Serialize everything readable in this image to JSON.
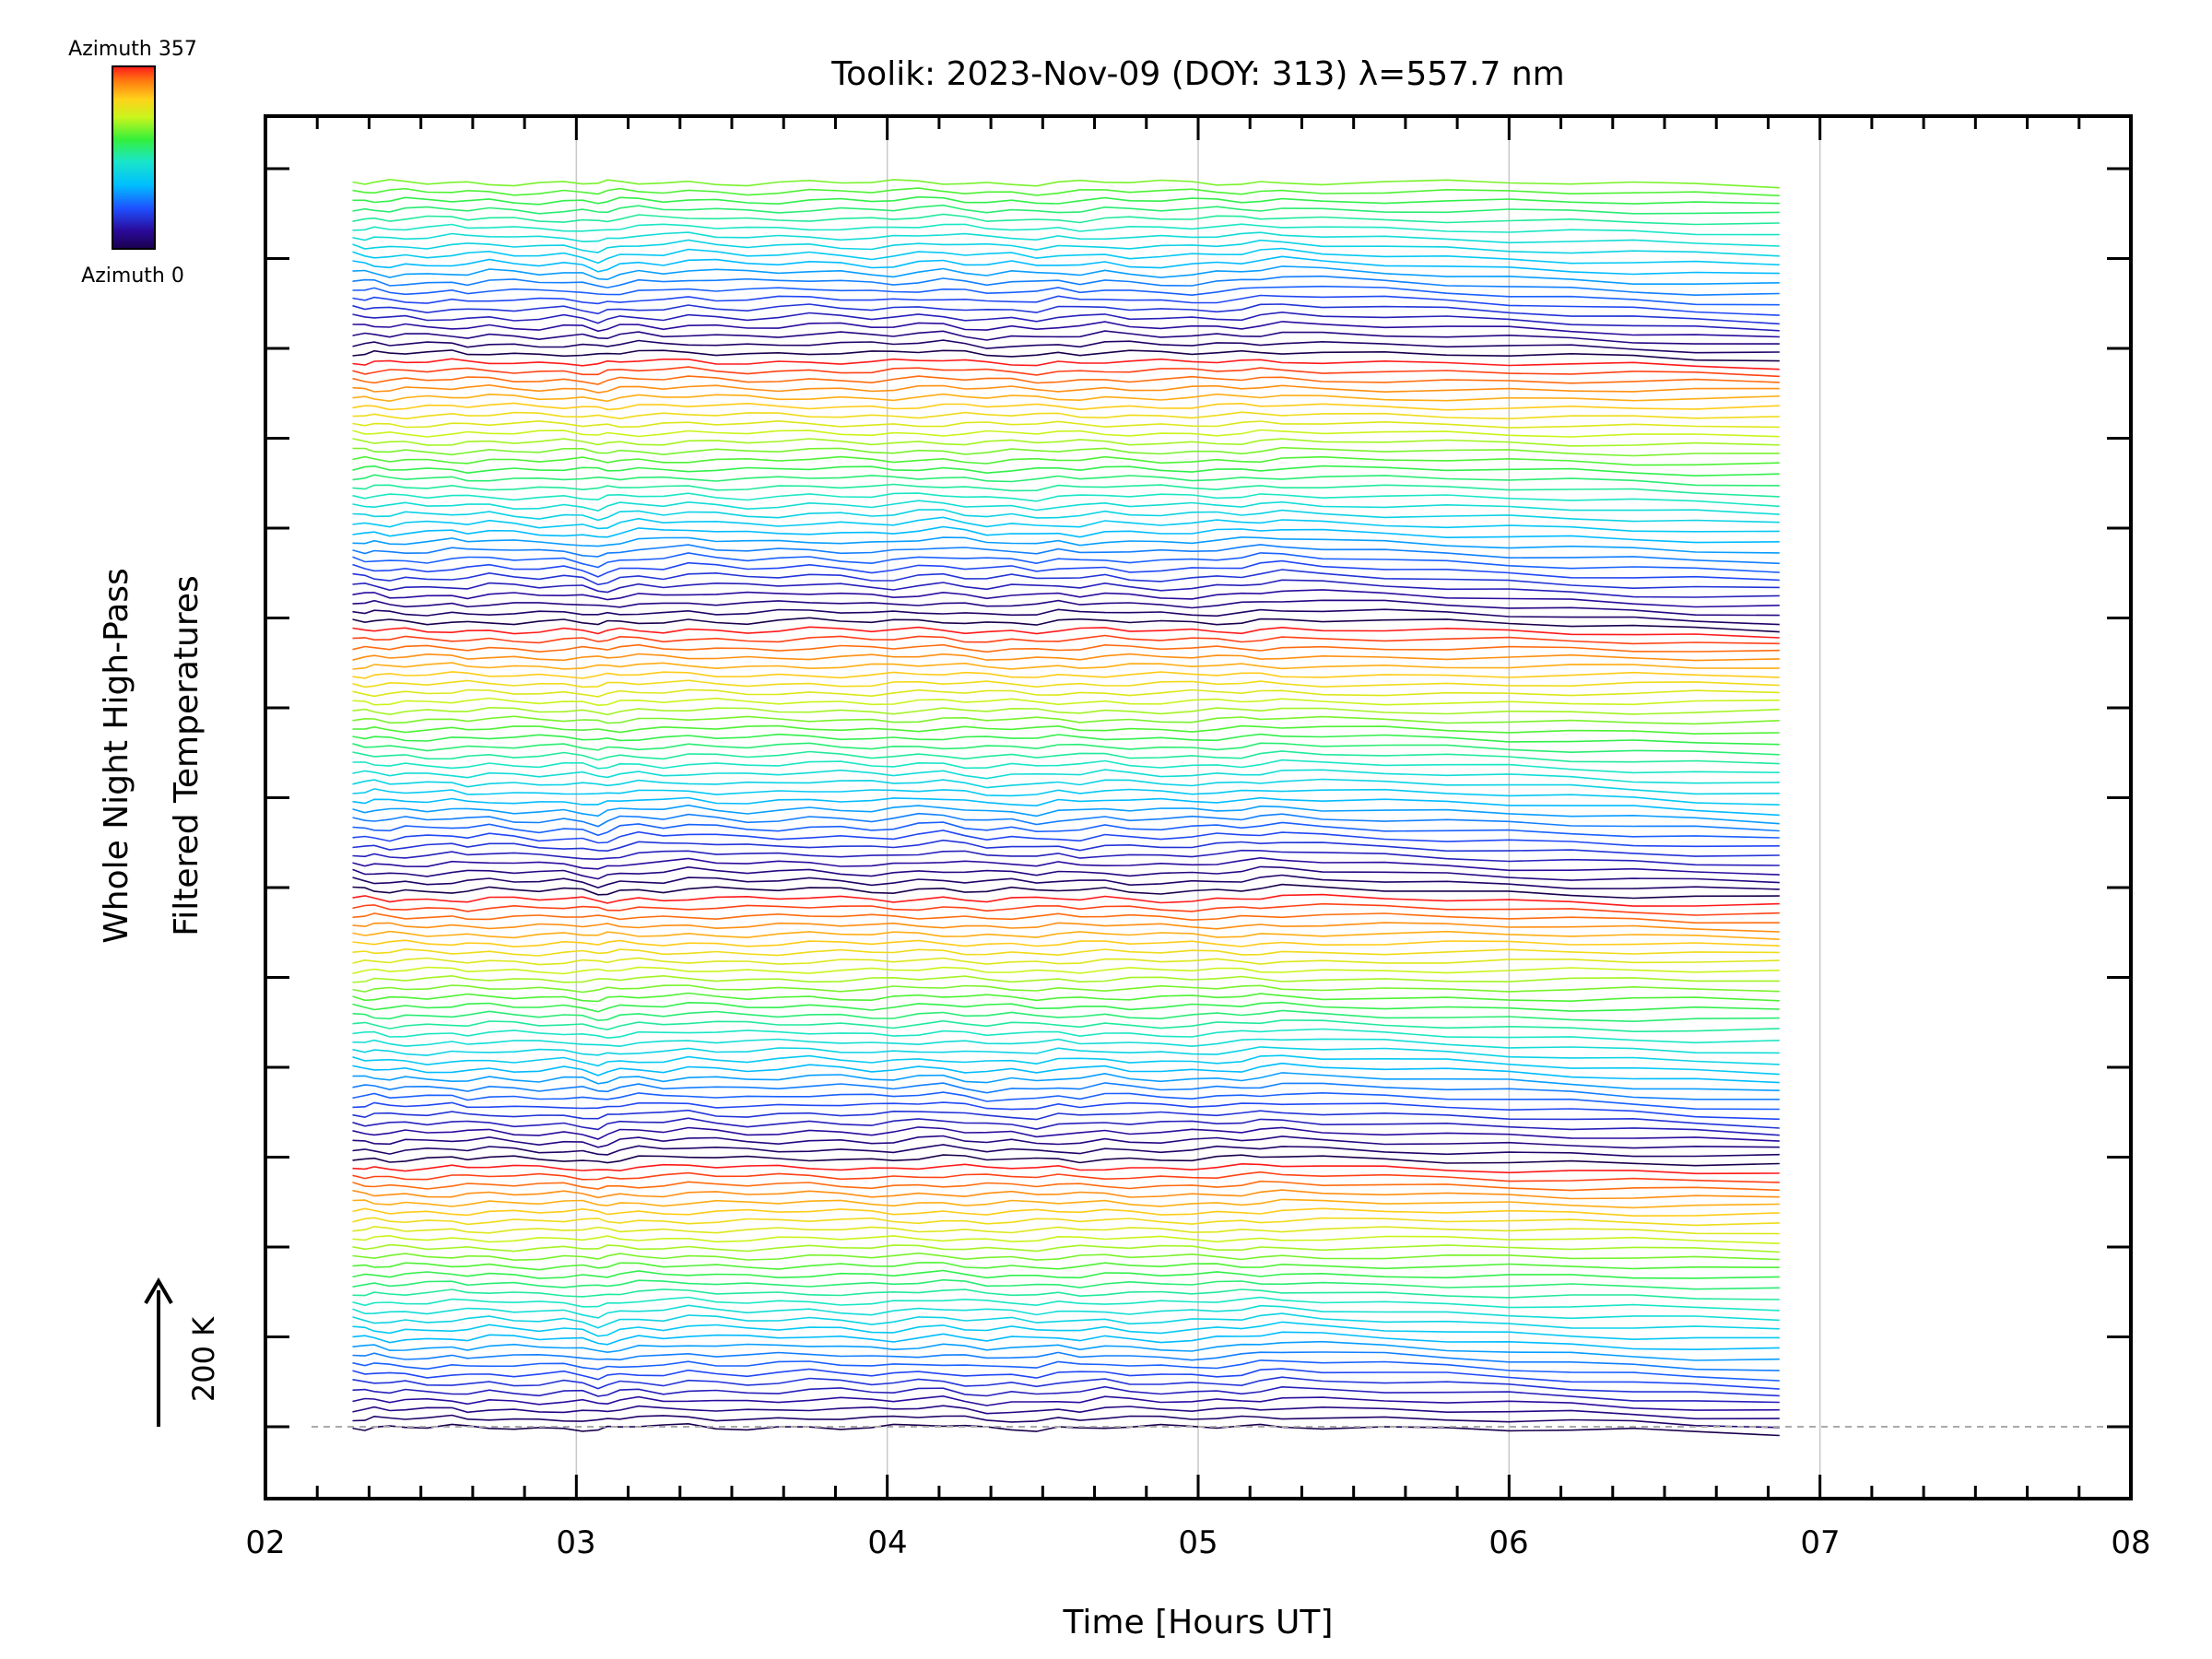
{
  "chart_data": {
    "type": "line",
    "title": "Toolik: 2023-Nov-09 (DOY: 313) λ=557.7 nm",
    "xlabel": "Time [Hours UT]",
    "ylabel_lines": [
      "Whole Night High-Pass",
      "Filtered Temperatures"
    ],
    "x_ticks": [
      "02",
      "03",
      "04",
      "05",
      "06",
      "07",
      "08"
    ],
    "xlim": [
      2,
      8
    ],
    "colorbar": {
      "top_label": "Azimuth 357",
      "bottom_label": "Azimuth 0",
      "colormap": "rainbow"
    },
    "scale_bar": {
      "label": "200 K"
    },
    "n_series": 140,
    "time_range": [
      2.28,
      6.87
    ],
    "series_cycle_length": 30,
    "time_sample": [
      2.28,
      2.32,
      2.35,
      2.4,
      2.45,
      2.52,
      2.6,
      2.65,
      2.72,
      2.8,
      2.88,
      2.96,
      3.02,
      3.07,
      3.1,
      3.14,
      3.2,
      3.28,
      3.36,
      3.45,
      3.55,
      3.65,
      3.75,
      3.85,
      3.95,
      4.02,
      4.1,
      4.18,
      4.25,
      4.32,
      4.4,
      4.48,
      4.55,
      4.62,
      4.7,
      4.78,
      4.88,
      4.98,
      5.06,
      5.14,
      5.2,
      5.27,
      5.4,
      5.6,
      5.8,
      6.0,
      6.2,
      6.4,
      6.6,
      6.87
    ],
    "reference_waveform": [
      0.0,
      -0.15,
      -0.1,
      -0.35,
      -0.2,
      -0.3,
      -0.1,
      -0.25,
      0.05,
      -0.2,
      -0.35,
      -0.15,
      -0.4,
      -0.9,
      -0.6,
      -0.2,
      0.1,
      -0.1,
      0.3,
      0.0,
      -0.2,
      -0.1,
      0.1,
      -0.05,
      -0.3,
      -0.2,
      0.15,
      0.3,
      -0.1,
      -0.4,
      -0.2,
      -0.5,
      -0.1,
      -0.3,
      0.1,
      -0.2,
      -0.3,
      -0.25,
      -0.1,
      0.0,
      0.3,
      0.5,
      0.2,
      -0.1,
      -0.4,
      -0.7,
      -1.0,
      -1.3,
      -1.6,
      -1.9
    ]
  },
  "colors": {
    "grid": "#c8c8c8",
    "baseline": "#aaaaaa",
    "axis": "#000000"
  }
}
